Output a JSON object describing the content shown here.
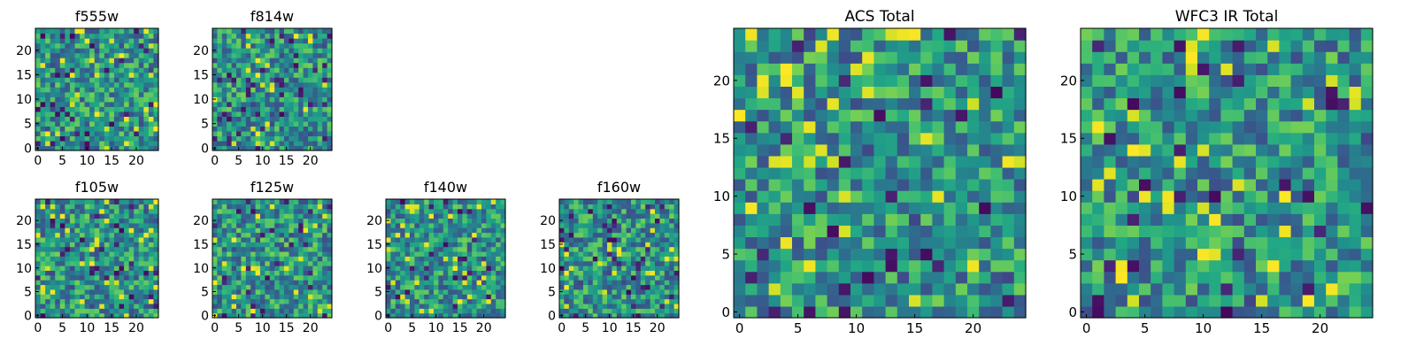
{
  "chart_data": [
    {
      "type": "heatmap",
      "title": "f555w",
      "xlim": [
        0,
        24
      ],
      "ylim": [
        0,
        24
      ],
      "xticks": [
        "0",
        "5",
        "10",
        "15",
        "20"
      ],
      "yticks": [
        "0",
        "5",
        "10",
        "15",
        "20"
      ],
      "grid_size": 25,
      "colormap": "viridis",
      "seed": 11
    },
    {
      "type": "heatmap",
      "title": "f814w",
      "xlim": [
        0,
        24
      ],
      "ylim": [
        0,
        24
      ],
      "xticks": [
        "0",
        "5",
        "10",
        "15",
        "20"
      ],
      "yticks": [
        "0",
        "5",
        "10",
        "15",
        "20"
      ],
      "grid_size": 25,
      "colormap": "viridis",
      "seed": 23
    },
    {
      "type": "heatmap",
      "title": "f105w",
      "xlim": [
        0,
        24
      ],
      "ylim": [
        0,
        24
      ],
      "xticks": [
        "0",
        "5",
        "10",
        "15",
        "20"
      ],
      "yticks": [
        "0",
        "5",
        "10",
        "15",
        "20"
      ],
      "grid_size": 25,
      "colormap": "viridis",
      "seed": 37
    },
    {
      "type": "heatmap",
      "title": "f125w",
      "xlim": [
        0,
        24
      ],
      "ylim": [
        0,
        24
      ],
      "xticks": [
        "0",
        "5",
        "10",
        "15",
        "20"
      ],
      "yticks": [
        "0",
        "5",
        "10",
        "15",
        "20"
      ],
      "grid_size": 25,
      "colormap": "viridis",
      "seed": 41
    },
    {
      "type": "heatmap",
      "title": "f140w",
      "xlim": [
        0,
        24
      ],
      "ylim": [
        0,
        24
      ],
      "xticks": [
        "0",
        "5",
        "10",
        "15",
        "20"
      ],
      "yticks": [
        "0",
        "5",
        "10",
        "15",
        "20"
      ],
      "grid_size": 25,
      "colormap": "viridis",
      "seed": 53
    },
    {
      "type": "heatmap",
      "title": "f160w",
      "xlim": [
        0,
        24
      ],
      "ylim": [
        0,
        24
      ],
      "xticks": [
        "0",
        "5",
        "10",
        "15",
        "20"
      ],
      "yticks": [
        "0",
        "5",
        "10",
        "15",
        "20"
      ],
      "grid_size": 25,
      "colormap": "viridis",
      "seed": 67
    },
    {
      "type": "heatmap",
      "title": "ACS Total",
      "xlim": [
        0,
        24
      ],
      "ylim": [
        0,
        24
      ],
      "xticks": [
        "0",
        "5",
        "10",
        "15",
        "20"
      ],
      "yticks": [
        "0",
        "5",
        "10",
        "15",
        "20"
      ],
      "grid_size": 25,
      "colormap": "viridis",
      "seed": 79
    },
    {
      "type": "heatmap",
      "title": "WFC3 IR Total",
      "xlim": [
        0,
        24
      ],
      "ylim": [
        0,
        24
      ],
      "xticks": [
        "0",
        "5",
        "10",
        "15",
        "20"
      ],
      "yticks": [
        "0",
        "5",
        "10",
        "15",
        "20"
      ],
      "grid_size": 25,
      "colormap": "viridis",
      "seed": 97
    }
  ]
}
